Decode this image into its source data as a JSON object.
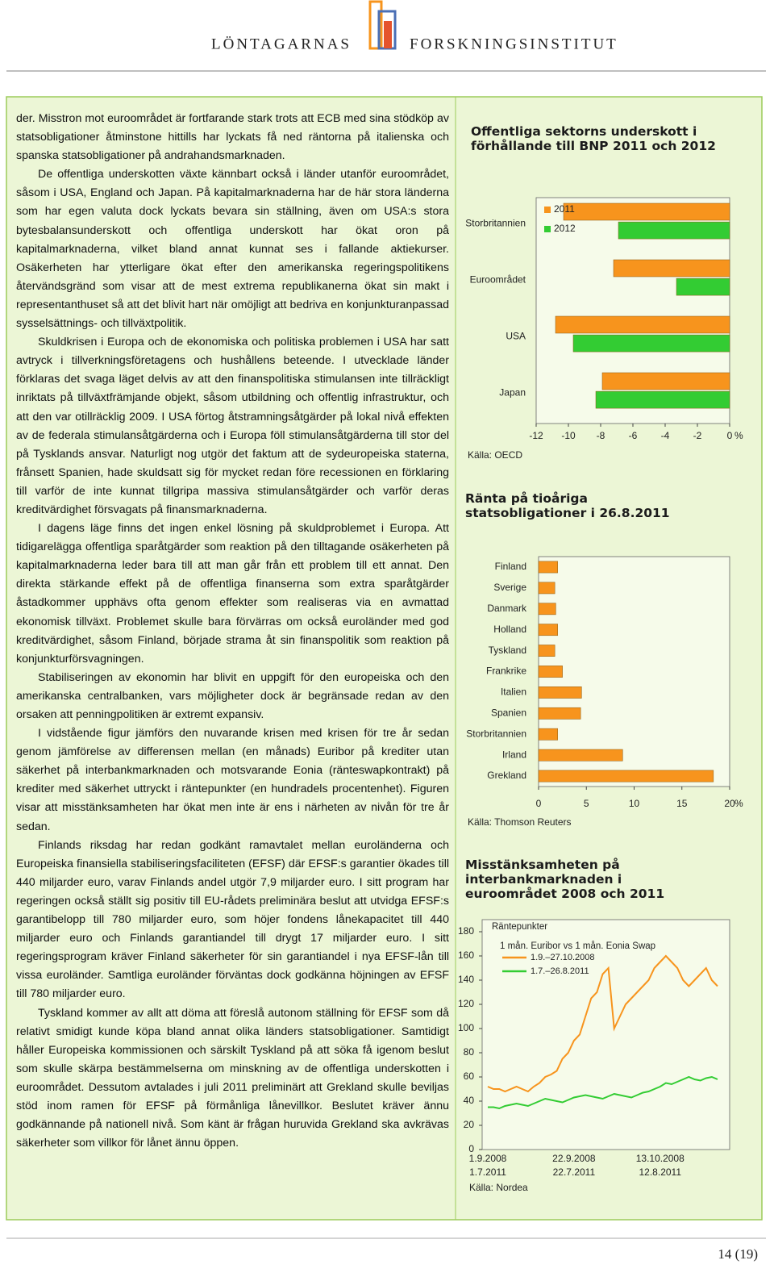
{
  "header": {
    "left": "LÖNTAGARNAS",
    "right": "FORSKNINGSINSTITUT"
  },
  "text": {
    "paragraphs": [
      "der. Misstron mot euroområdet är fortfarande stark trots att ECB med sina stödköp av statsobligationer åtminstone hittills har lyckats få ned räntorna på italienska och spanska statsobligationer på andrahandsmarknaden.",
      "De offentliga underskotten växte kännbart också i länder utanför euroområdet, såsom i USA, England och Japan. På kapitalmarknaderna har de här stora länderna som har egen valuta dock lyckats bevara sin ställning, även om USA:s stora bytesbalansunderskott och offentliga underskott har ökat oron på kapitalmarknaderna, vilket bland annat kunnat ses i fallande aktiekurser. Osäkerheten har ytterligare ökat efter den amerikanska regeringspolitikens återvändsgränd som visar att de mest extrema republikanerna ökat sin makt i representanthuset så att det blivit hart när omöjligt att bedriva en konjunkturanpassad sysselsättnings- och tillväxtpolitik.",
      "Skuldkrisen i Europa och de ekonomiska och politiska problemen i USA har satt avtryck i tillverkningsföretagens och hushållens beteende. I utvecklade länder förklaras det svaga läget delvis av att den finanspolitiska stimulansen inte tillräckligt inriktats på tillväxtfrämjande objekt, såsom utbildning och offentlig infrastruktur, och att den var otillräcklig 2009. I USA förtog åtstramningsåtgärder på lokal nivå effekten av de federala stimulansåtgärderna och i Europa föll stimulansåtgärderna till stor del på Tysklands ansvar. Naturligt nog utgör det faktum att de sydeuropeiska staterna, frånsett Spanien, hade skuldsatt sig för mycket redan före recessionen en förklaring till varför de inte kunnat tillgripa massiva stimulansåtgärder och varför deras kreditvärdighet försvagats på finansmarknaderna.",
      "I dagens läge finns det ingen enkel lösning på skuldproblemet i Europa. Att tidigarelägga offentliga sparåtgärder som reaktion på den tilltagande osäkerheten på kapitalmarknaderna leder bara till att man går från ett problem till ett annat. Den direkta stärkande effekt på de offentliga finanserna som extra sparåtgärder åstadkommer upphävs ofta genom effekter som realiseras via en avmattad ekonomisk tillväxt. Problemet skulle bara förvärras om också euroländer med god kreditvärdighet, såsom Finland, började strama åt sin finanspolitik som reaktion på konjunkturförsvagningen.",
      "Stabiliseringen av ekonomin har blivit en uppgift för den europeiska och den amerikanska centralbanken, vars möjligheter dock är begränsade redan av den orsaken att penningpolitiken är extremt expansiv.",
      "I vidstående figur jämförs den nuvarande krisen med krisen för tre år sedan genom jämförelse av differensen mellan (en månads) Euribor på krediter utan säkerhet på interbankmarknaden och motsvarande Eonia (ränteswapkontrakt) på krediter med säkerhet uttryckt i räntepunkter (en hundradels procentenhet). Figuren visar att misstänksamheten har ökat men inte är ens i närheten av nivån för tre år sedan.",
      "Finlands riksdag har redan godkänt ramavtalet mellan euroländerna och Europeiska finansiella stabiliseringsfaciliteten (EFSF) där EFSF:s garantier ökades till 440 miljarder euro, varav Finlands andel utgör 7,9 miljarder euro. I sitt program har regeringen också ställt sig positiv till EU-rådets preliminära beslut att utvidga EFSF:s garantibelopp till 780 miljarder euro, som höjer fondens lånekapacitet till 440 miljarder euro och Finlands garantiandel till drygt 17 miljarder euro. I sitt regeringsprogram kräver Finland säkerheter för sin garantiandel i nya EFSF-lån till vissa euroländer. Samtliga euroländer förväntas dock godkänna höjningen av EFSF till 780 miljarder euro.",
      "Tyskland kommer av allt att döma att föreslå autonom ställning för EFSF som då relativt smidigt kunde köpa bland annat olika länders statsobligationer. Samtidigt håller Europeiska kommissionen och särskilt Tyskland på att söka få igenom beslut som skulle skärpa bestämmelserna om minskning av de offentliga underskotten i euroområdet. Dessutom avtalades i juli 2011 preliminärt att Grekland skulle beviljas stöd inom ramen för EFSF på förmånliga lånevillkor. Beslutet kräver ännu godkännande på nationell nivå. Som känt är frågan huruvida Grekland ska avkrävas säkerheter som villkor för lånet ännu öppen."
    ]
  },
  "chart_data": [
    {
      "type": "bar",
      "orientation": "horizontal",
      "title": "Offentliga sektorns underskott i förhållande till BNP 2011 och 2012",
      "categories": [
        "Storbritannien",
        "Euroområdet",
        "USA",
        "Japan"
      ],
      "series": [
        {
          "name": "2011",
          "color": "#f7941d",
          "values": [
            -10.3,
            -7.2,
            -10.8,
            -7.9
          ]
        },
        {
          "name": "2012",
          "color": "#33cc33",
          "values": [
            -6.9,
            -3.3,
            -9.7,
            -8.3
          ]
        }
      ],
      "xlim": [
        -12,
        0
      ],
      "xticks": [
        -12,
        -10,
        -8,
        -6,
        -4,
        -2,
        0
      ],
      "x_unit": "%",
      "source": "Källa: OECD"
    },
    {
      "type": "bar",
      "orientation": "horizontal",
      "title": "Ränta på tioåriga statsobligationer i 26.8.2011",
      "categories": [
        "Finland",
        "Sverige",
        "Danmark",
        "Holland",
        "Tyskland",
        "Frankrike",
        "Italien",
        "Spanien",
        "Storbritannien",
        "Irland",
        "Grekland"
      ],
      "values": [
        2.0,
        1.7,
        1.8,
        2.0,
        1.7,
        2.5,
        4.5,
        4.4,
        2.0,
        8.8,
        18.3
      ],
      "color": "#f7941d",
      "xlim": [
        0,
        20
      ],
      "xticks": [
        0,
        5,
        10,
        15,
        20
      ],
      "x_unit": "%",
      "source": "Källa: Thomson Reuters"
    },
    {
      "type": "line",
      "title": "Misstänksamheten på interbankmarknaden i euroområdet 2008 och 2011",
      "ylabel": "Räntepunkter",
      "legend_title": "1 mån. Euribor vs 1 mån. Eonia Swap",
      "categories": [
        "1.9.2008",
        null,
        null,
        null,
        null,
        null,
        null,
        null,
        null,
        null,
        null,
        null,
        null,
        null,
        null,
        "22.9.2008",
        null,
        null,
        null,
        null,
        null,
        null,
        null,
        null,
        null,
        null,
        null,
        null,
        null,
        null,
        "13.10.2008",
        null,
        null,
        null,
        null,
        null,
        null,
        null,
        null,
        null,
        null
      ],
      "categories_2": [
        "1.7.2011",
        null,
        null,
        null,
        null,
        null,
        null,
        null,
        null,
        null,
        null,
        null,
        null,
        null,
        null,
        "22.7.2011",
        null,
        null,
        null,
        null,
        null,
        null,
        null,
        null,
        null,
        null,
        null,
        null,
        null,
        null,
        "12.8.2011",
        null,
        null,
        null,
        null,
        null,
        null,
        null,
        null,
        null,
        null
      ],
      "series": [
        {
          "name": "1.9.–27.10.2008",
          "color": "#f7941d",
          "values": [
            52,
            50,
            50,
            48,
            50,
            52,
            50,
            48,
            52,
            55,
            60,
            62,
            65,
            75,
            80,
            90,
            95,
            110,
            125,
            130,
            145,
            150,
            100,
            110,
            120,
            125,
            130,
            135,
            140,
            150,
            155,
            160,
            155,
            150,
            140,
            135,
            140,
            145,
            150,
            140,
            135
          ]
        },
        {
          "name": "1.7.–26.8.2011",
          "color": "#33cc33",
          "values": [
            35,
            35,
            34,
            36,
            37,
            38,
            37,
            36,
            38,
            40,
            42,
            41,
            40,
            39,
            41,
            43,
            44,
            45,
            44,
            43,
            42,
            44,
            46,
            45,
            44,
            43,
            45,
            47,
            48,
            50,
            52,
            55,
            54,
            56,
            58,
            60,
            58,
            57,
            59,
            60,
            58
          ]
        }
      ],
      "ylim": [
        0,
        190
      ],
      "yticks": [
        0,
        20,
        40,
        60,
        80,
        100,
        120,
        140,
        160,
        180
      ],
      "source": "Källa: Nordea"
    }
  ],
  "footer": {
    "page": "14 (19)"
  }
}
